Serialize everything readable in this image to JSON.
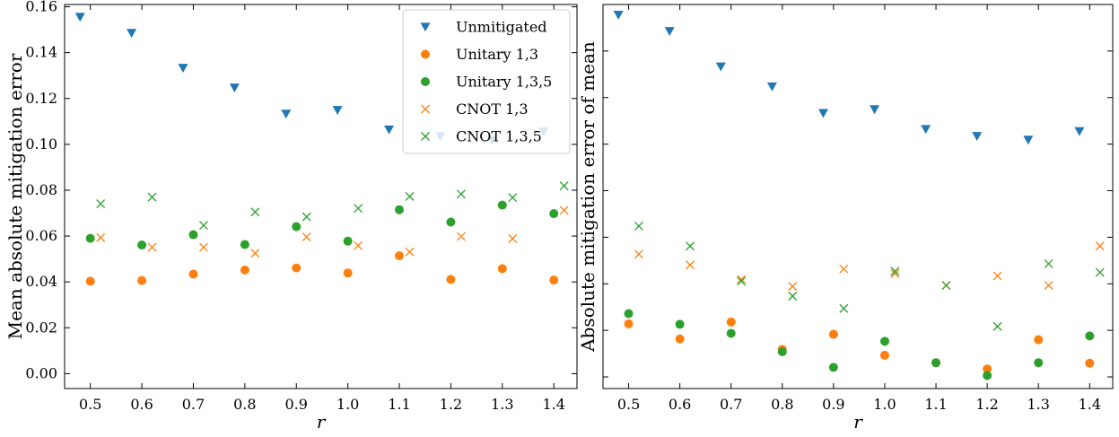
{
  "chart_data": [
    {
      "type": "scatter",
      "xlabel": "r",
      "ylabel": "Mean absolute mitigation error",
      "xlim": [
        0.45,
        1.445
      ],
      "ylim": [
        -0.0065,
        0.161
      ],
      "xticks": [
        "0.5",
        "0.6",
        "0.7",
        "0.8",
        "0.9",
        "1.0",
        "1.1",
        "1.2",
        "1.3",
        "1.4"
      ],
      "yticks": [
        "0.00",
        "0.02",
        "0.04",
        "0.06",
        "0.08",
        "0.10",
        "0.12",
        "0.14",
        "0.16"
      ],
      "legend_position": "top-right",
      "series": [
        {
          "name": "Unmitigated",
          "marker": "triangle-down",
          "color": "#1f77b4",
          "x": [
            0.48,
            0.58,
            0.68,
            0.78,
            0.88,
            0.98,
            1.08,
            1.18,
            1.28,
            1.38
          ],
          "y": [
            0.1555,
            0.1485,
            0.1333,
            0.1247,
            0.1133,
            0.1149,
            0.1064,
            0.1034,
            0.1018,
            0.1055
          ]
        },
        {
          "name": "Unitary 1,3",
          "marker": "circle",
          "color": "#ff7f0e",
          "x": [
            0.5,
            0.6,
            0.7,
            0.8,
            0.9,
            1.0,
            1.1,
            1.2,
            1.3,
            1.4
          ],
          "y": [
            0.0403,
            0.0406,
            0.0434,
            0.0452,
            0.0461,
            0.0439,
            0.0514,
            0.0411,
            0.0458,
            0.0408
          ]
        },
        {
          "name": "Unitary 1,3,5",
          "marker": "circle",
          "color": "#2ca02c",
          "x": [
            0.5,
            0.6,
            0.7,
            0.8,
            0.9,
            1.0,
            1.1,
            1.2,
            1.3,
            1.4
          ],
          "y": [
            0.059,
            0.0561,
            0.0606,
            0.0563,
            0.0641,
            0.0578,
            0.0715,
            0.0661,
            0.0735,
            0.0698
          ]
        },
        {
          "name": "CNOT 1,3",
          "marker": "x",
          "color": "#ff7f0e",
          "x": [
            0.52,
            0.62,
            0.72,
            0.82,
            0.92,
            1.02,
            1.12,
            1.22,
            1.32,
            1.42
          ],
          "y": [
            0.0593,
            0.0551,
            0.0551,
            0.0525,
            0.0596,
            0.0558,
            0.0531,
            0.0598,
            0.0589,
            0.0712
          ]
        },
        {
          "name": "CNOT 1,3,5",
          "marker": "x",
          "color": "#2ca02c",
          "x": [
            0.52,
            0.62,
            0.72,
            0.82,
            0.92,
            1.02,
            1.12,
            1.22,
            1.32,
            1.42
          ],
          "y": [
            0.0741,
            0.077,
            0.0647,
            0.0705,
            0.0684,
            0.0721,
            0.0773,
            0.0783,
            0.0768,
            0.0819
          ]
        }
      ]
    },
    {
      "type": "scatter",
      "xlabel": "r",
      "ylabel": "Absolute mitigation error of mean",
      "xlim": [
        0.45,
        1.445
      ],
      "ylim": [
        -0.005,
        0.16
      ],
      "xticks": [
        "0.5",
        "0.6",
        "0.7",
        "0.8",
        "0.9",
        "1.0",
        "1.1",
        "1.2",
        "1.3",
        "1.4"
      ],
      "yticks": [],
      "series": [
        {
          "name": "Unmitigated",
          "marker": "triangle-down",
          "color": "#1f77b4",
          "x": [
            0.48,
            0.58,
            0.68,
            0.78,
            0.88,
            0.98,
            1.08,
            1.18,
            1.28,
            1.38
          ],
          "y": [
            0.1555,
            0.1485,
            0.1333,
            0.1247,
            0.1133,
            0.1149,
            0.1064,
            0.1034,
            0.1018,
            0.1055
          ]
        },
        {
          "name": "Unitary 1,3",
          "marker": "circle",
          "color": "#ff7f0e",
          "x": [
            0.5,
            0.6,
            0.7,
            0.8,
            0.9,
            1.0,
            1.1,
            1.2,
            1.3,
            1.4
          ],
          "y": [
            0.0228,
            0.0163,
            0.0236,
            0.0118,
            0.0183,
            0.0093,
            0.0061,
            0.0034,
            0.016,
            0.0059
          ]
        },
        {
          "name": "Unitary 1,3,5",
          "marker": "circle",
          "color": "#2ca02c",
          "x": [
            0.5,
            0.6,
            0.7,
            0.8,
            0.9,
            1.0,
            1.1,
            1.2,
            1.3,
            1.4
          ],
          "y": [
            0.0272,
            0.0226,
            0.0187,
            0.0108,
            0.0041,
            0.0153,
            0.0061,
            0.0006,
            0.0061,
            0.0176
          ]
        },
        {
          "name": "CNOT 1,3",
          "marker": "x",
          "color": "#ff7f0e",
          "x": [
            0.52,
            0.62,
            0.72,
            0.82,
            0.92,
            1.02,
            1.12,
            1.22,
            1.32,
            1.42
          ],
          "y": [
            0.0527,
            0.0481,
            0.0419,
            0.0389,
            0.0464,
            0.0444,
            0.0393,
            0.0434,
            0.0393,
            0.0562
          ]
        },
        {
          "name": "CNOT 1,3,5",
          "marker": "x",
          "color": "#2ca02c",
          "x": [
            0.52,
            0.62,
            0.72,
            0.82,
            0.92,
            1.02,
            1.12,
            1.22,
            1.32,
            1.42
          ],
          "y": [
            0.0648,
            0.0562,
            0.0411,
            0.0347,
            0.0294,
            0.0454,
            0.0393,
            0.0217,
            0.0486,
            0.0449
          ]
        }
      ]
    }
  ]
}
